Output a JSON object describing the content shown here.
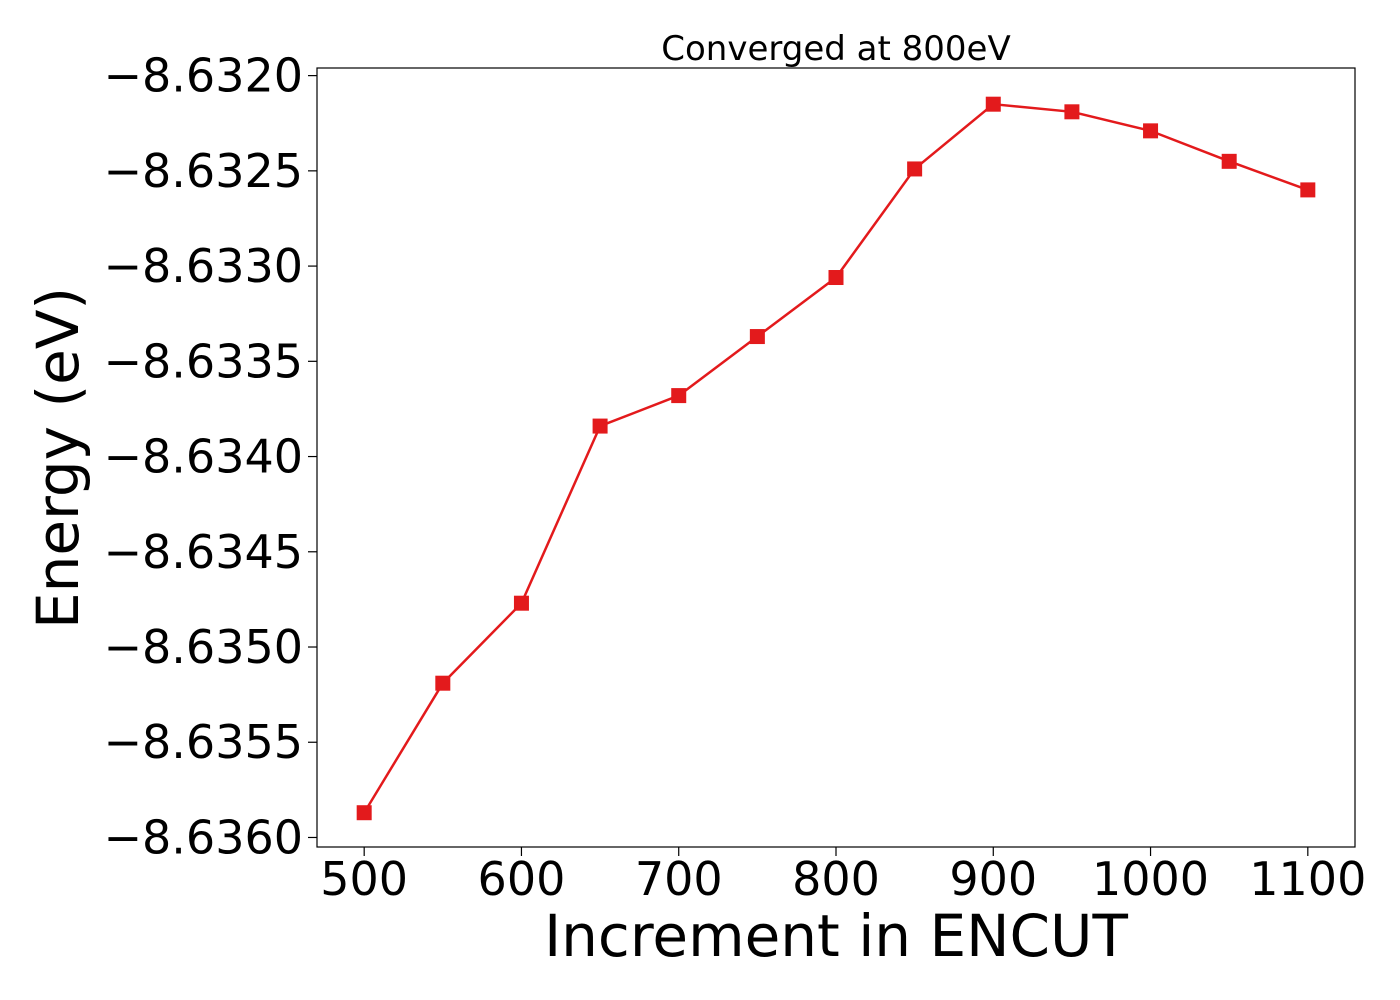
{
  "chart_data": {
    "type": "line",
    "title": "Converged at 800eV",
    "xlabel": "Increment in ENCUT",
    "ylabel": "Energy (eV)",
    "x": [
      500,
      550,
      600,
      650,
      700,
      750,
      800,
      850,
      900,
      950,
      1000,
      1050,
      1100
    ],
    "series": [
      {
        "values": [
          -8.63587,
          -8.63519,
          -8.63477,
          -8.63384,
          -8.63368,
          -8.63337,
          -8.63306,
          -8.63249,
          -8.63215,
          -8.63219,
          -8.63229,
          -8.63245,
          -8.6326
        ],
        "color": "#e31a1c",
        "marker": "square"
      }
    ],
    "xticks": [
      500,
      600,
      700,
      800,
      900,
      1000,
      1100
    ],
    "xtick_labels": [
      "500",
      "600",
      "700",
      "800",
      "900",
      "1000",
      "1100"
    ],
    "yticks": [
      -8.632,
      -8.6325,
      -8.633,
      -8.6335,
      -8.634,
      -8.6345,
      -8.635,
      -8.6355,
      -8.636
    ],
    "ytick_labels": [
      "−8.6320",
      "−8.6325",
      "−8.6330",
      "−8.6335",
      "−8.6340",
      "−8.6345",
      "−8.6350",
      "−8.6355",
      "−8.6360"
    ],
    "xlim": [
      470,
      1130
    ],
    "ylim": [
      -8.63605,
      -8.63196
    ],
    "grid": false,
    "legend": "none"
  }
}
